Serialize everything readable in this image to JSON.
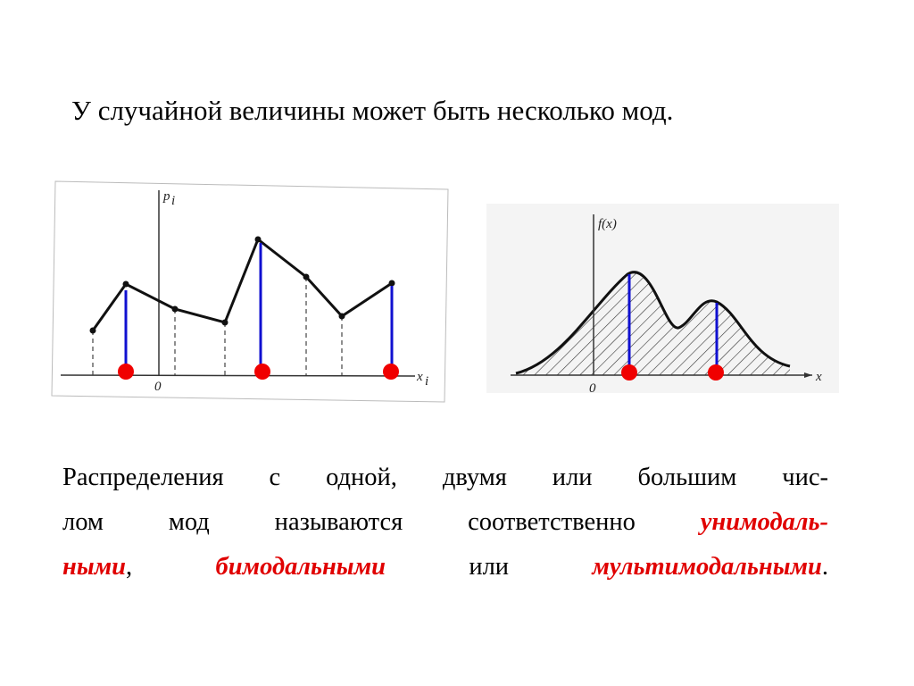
{
  "title": "У случайной величины может быть несколько мод.",
  "figure_left": {
    "y_label": "p",
    "y_sub": "i",
    "x_label": "x",
    "x_sub": "i",
    "origin": "0"
  },
  "figure_right": {
    "y_label": "f(x)",
    "x_label": "x",
    "origin": "0"
  },
  "paragraph": [
    [
      {
        "text": "Распределения с одной, двумя или большим чис-",
        "style": "normal"
      }
    ],
    [
      {
        "text": "лом мод называются соответственно",
        "style": "normal"
      },
      {
        "text": "унимодаль-",
        "style": "emphasis"
      }
    ],
    [
      {
        "text": "ными",
        "style": "emphasis"
      },
      {
        "text": ",",
        "style": "normal"
      },
      {
        "text": "бимодальными",
        "style": "emphasis"
      },
      {
        "text": "или",
        "style": "normal"
      },
      {
        "text": "мультимодальными",
        "style": "emphasis"
      },
      {
        "text": ".",
        "style": "normal"
      }
    ]
  ]
}
